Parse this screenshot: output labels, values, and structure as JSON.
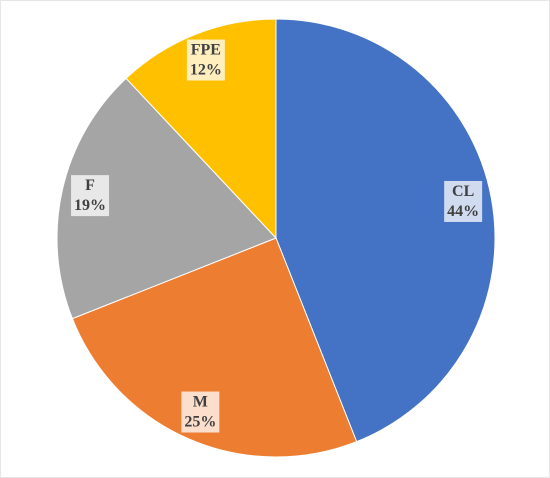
{
  "chart_data": {
    "type": "pie",
    "categories": [
      "CL",
      "M",
      "F",
      "FPE"
    ],
    "values": [
      44,
      25,
      19,
      12
    ],
    "value_labels": [
      "44%",
      "25%",
      "19%",
      "12%"
    ],
    "colors": [
      "#4472c4",
      "#ed7d31",
      "#a5a5a5",
      "#ffc000"
    ]
  }
}
